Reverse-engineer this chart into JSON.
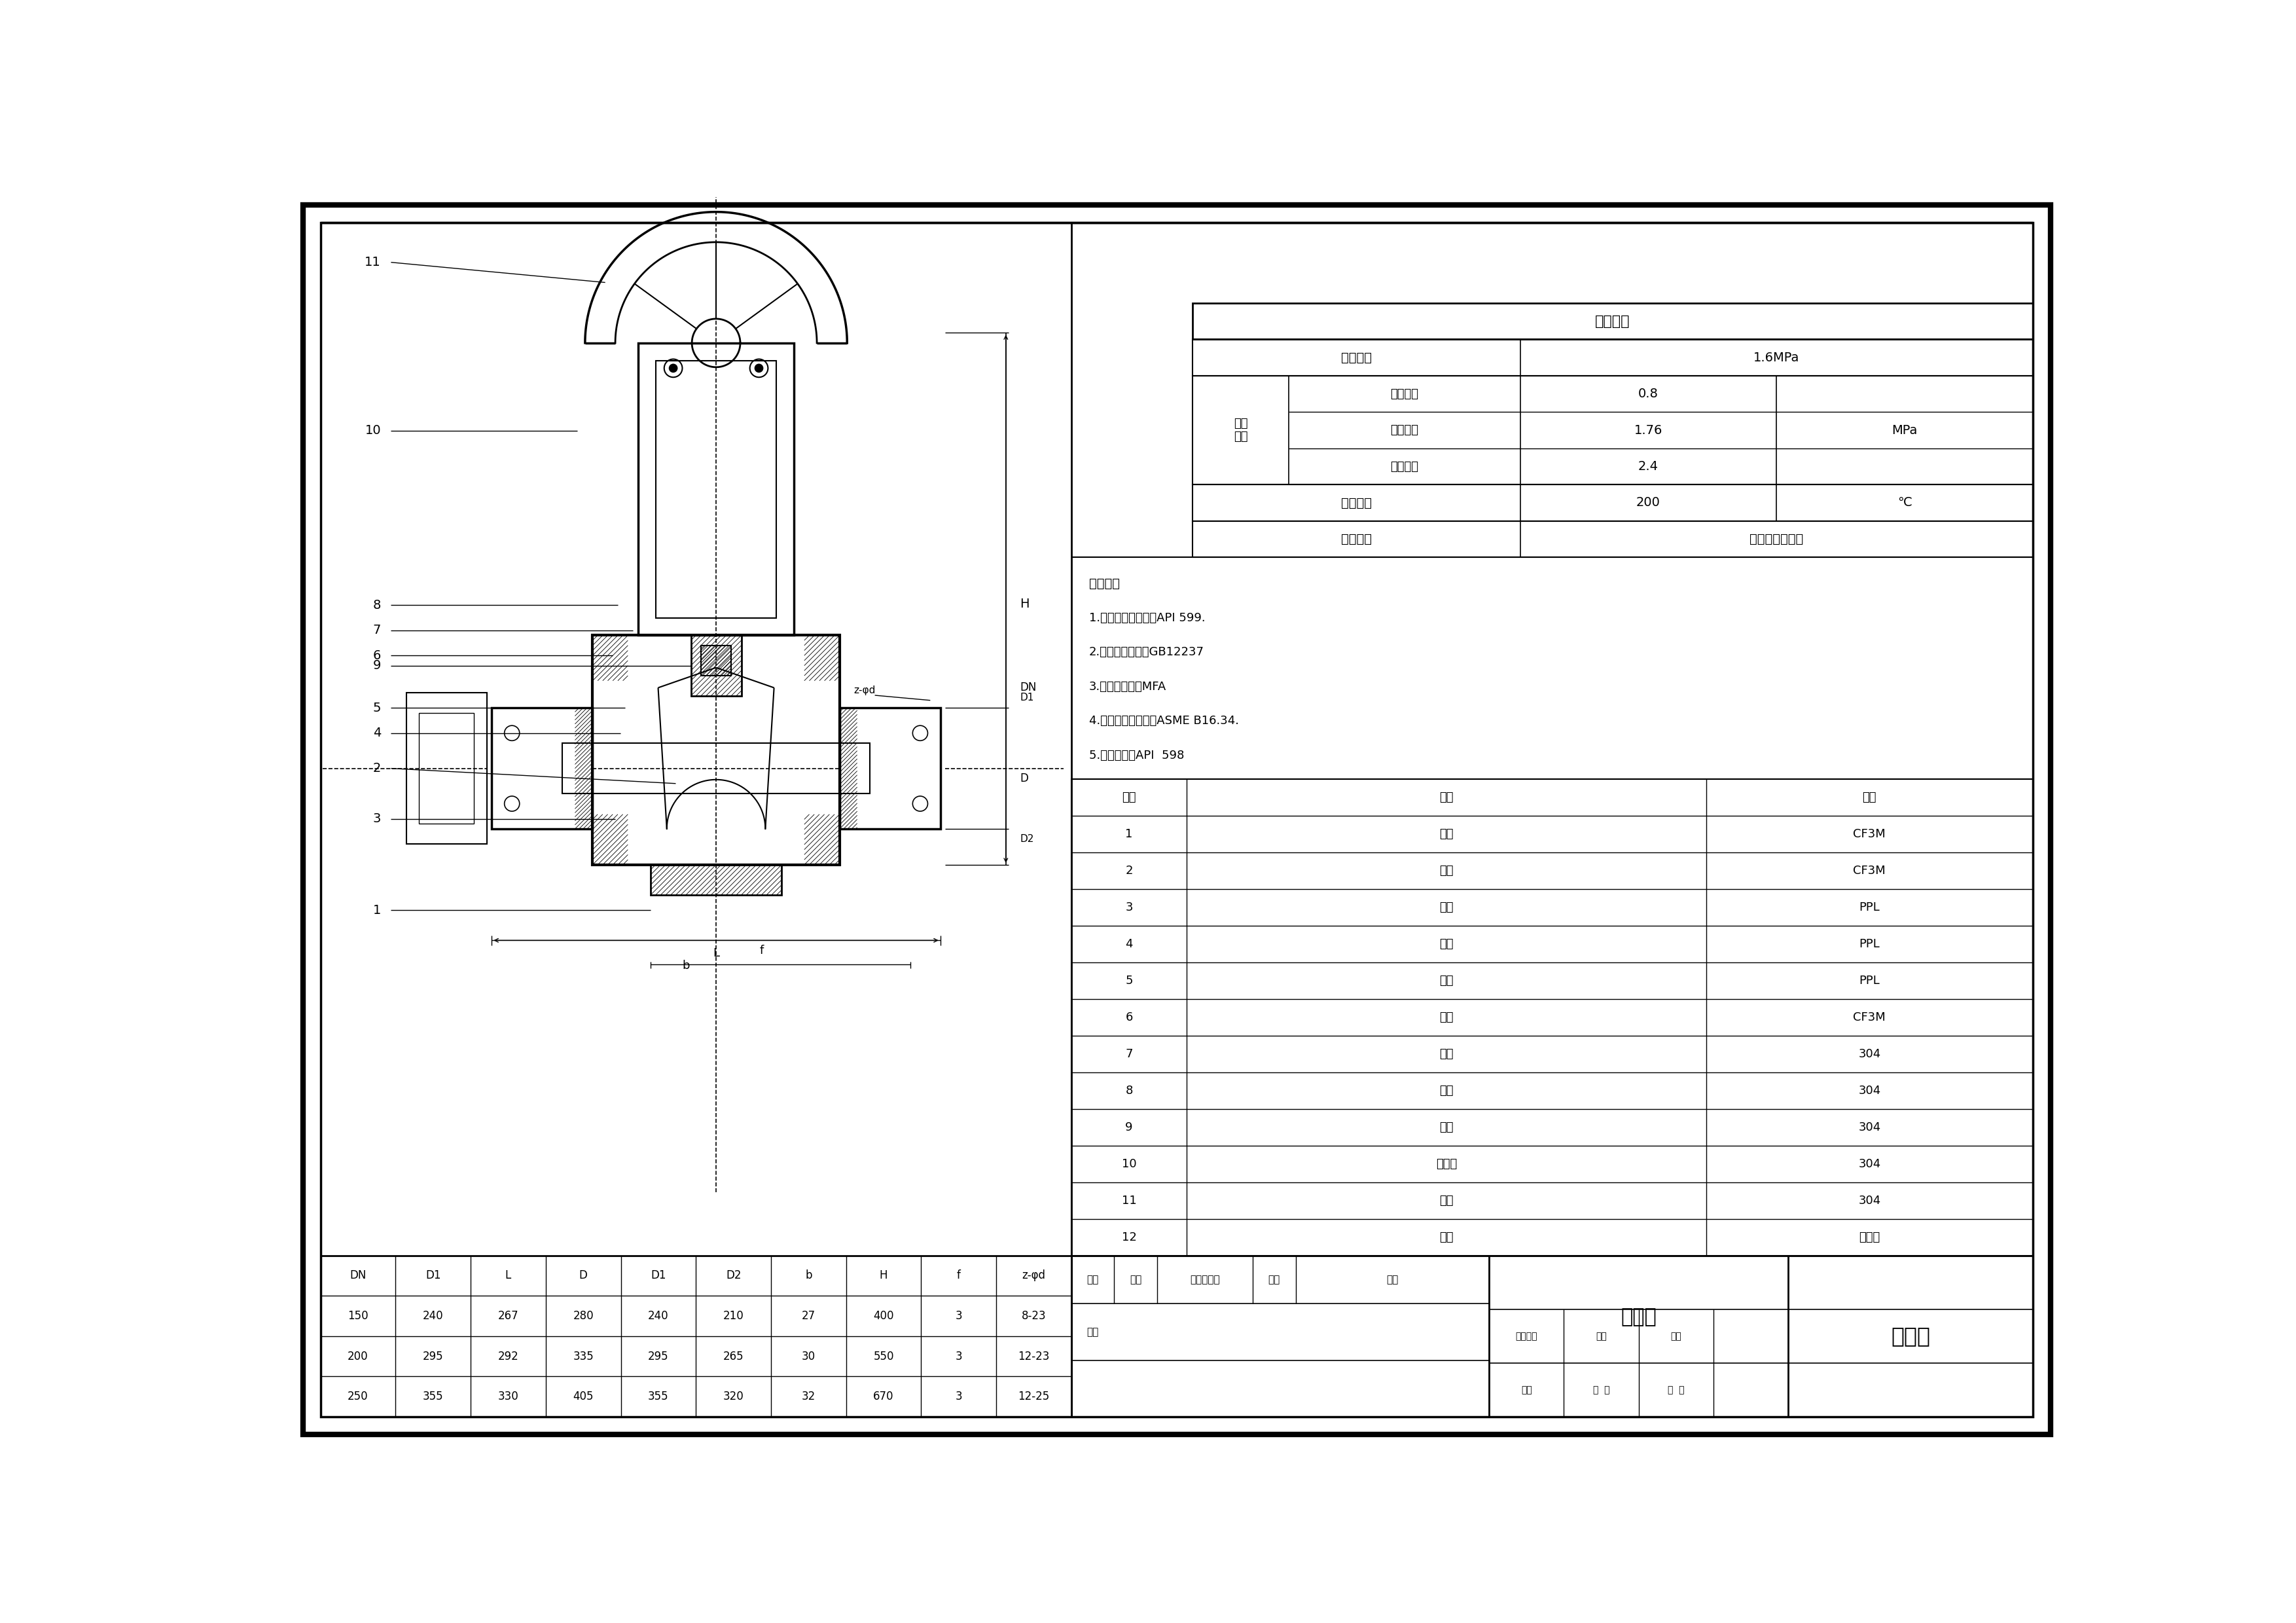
{
  "bg_color": "#FFFFFF",
  "perf_table": {
    "header": "性能规范",
    "col1_label": "公称压力",
    "col1_value": "1.6MPa",
    "test_label": "测试\n压力",
    "test_rows": [
      {
        "name": "壳体试验",
        "value": "2.4"
      },
      {
        "name": "密封试验",
        "value": "1.76"
      },
      {
        "name": "空气试验",
        "value": "0.8"
      }
    ],
    "test_unit": "MPa",
    "temp_label": "适用温度",
    "temp_value": "200",
    "temp_unit": "℃",
    "medium_label": "适用介质",
    "medium_value": "水、蒸汽、油品"
  },
  "tech_notes": [
    "技术要求",
    "1.设计和制造根据：API 599.",
    "2.端法兰尺寸按：GB12237",
    "3.结构长度按：MFA",
    "4.压力温度基准按：ASME B16.34.",
    "5.压力测试：API  598"
  ],
  "parts_table": {
    "headers": [
      "序号",
      "名称",
      "材质"
    ],
    "rows": [
      [
        "1",
        "阀体",
        "CF3M"
      ],
      [
        "2",
        "旋塞",
        "CF3M"
      ],
      [
        "3",
        "阀座",
        "PPL"
      ],
      [
        "4",
        "垫片",
        "PPL"
      ],
      [
        "5",
        "填料",
        "PPL"
      ],
      [
        "6",
        "阀盖",
        "CF3M"
      ],
      [
        "7",
        "螺母",
        "304"
      ],
      [
        "8",
        "螺栓",
        "304"
      ],
      [
        "9",
        "压盖",
        "304"
      ],
      [
        "10",
        "连接套",
        "304"
      ],
      [
        "11",
        "支架",
        "304"
      ],
      [
        "12",
        "蜗轮",
        "组合件"
      ]
    ]
  },
  "dim_table": {
    "headers": [
      "DN",
      "D1",
      "L",
      "D",
      "D1",
      "D2",
      "b",
      "H",
      "f",
      "z-φd"
    ],
    "rows": [
      [
        "150",
        "240",
        "267",
        "280",
        "240",
        "210",
        "27",
        "400",
        "3",
        "8-23"
      ],
      [
        "200",
        "295",
        "292",
        "335",
        "295",
        "265",
        "30",
        "550",
        "3",
        "12-23"
      ],
      [
        "250",
        "355",
        "330",
        "405",
        "355",
        "320",
        "32",
        "670",
        "3",
        "12-25"
      ]
    ]
  },
  "title_block": {
    "label_biaoji": "标记",
    "label_shuliang": "数量",
    "label_gengguai": "更改文件号",
    "label_qianzi": "签字",
    "label_riqi": "日期",
    "label_sheji": "设计",
    "label_tuyangbaoji": "图样标记",
    "label_zhongliang": "重量",
    "label_bili": "比例",
    "label_riqi2": "日期",
    "label_gongzhang": "共  张",
    "label_dizhang": "第  张",
    "assembly": "装配图",
    "valve_name": "旋塞阀"
  }
}
